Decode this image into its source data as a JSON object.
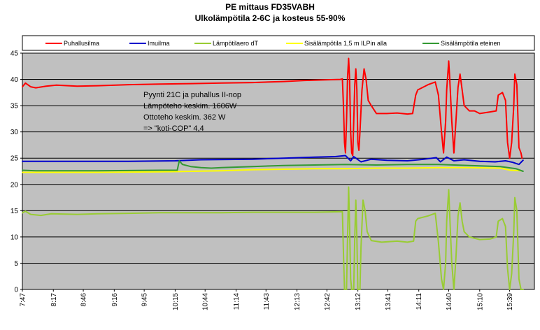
{
  "chart_data": {
    "type": "line",
    "title": "PE mittaus FD35VABH",
    "subtitle": "Ulkolämpötila 2-6C ja kosteus 55-90%",
    "xlabel": "",
    "ylabel": "",
    "ylim": [
      0,
      45
    ],
    "yticks": [
      0,
      5,
      10,
      15,
      20,
      25,
      30,
      35,
      40,
      45
    ],
    "x_range": [
      "7:47",
      "16:03"
    ],
    "x_tick_labels": [
      "7:47",
      "8:17",
      "8:46",
      "9:16",
      "9:45",
      "10:15",
      "10:44",
      "11:14",
      "11:43",
      "12:13",
      "12:42",
      "13:12",
      "13:41",
      "14:11",
      "14:40",
      "15:10",
      "15:39"
    ],
    "grid": "horizontal",
    "plot_background": "#c0c0c0",
    "legend_position": "top",
    "annotations": [
      "Pyynti 21C ja puhallus II-nop",
      "Lämpöteho keskim. 1606W",
      "Ottoteho keskim. 362 W",
      "=> \"koti-COP\" 4,4"
    ],
    "series": [
      {
        "name": "Puhallusilma",
        "color": "#ff0000",
        "points": [
          [
            "7:47",
            38.6
          ],
          [
            "7:50",
            39.3
          ],
          [
            "7:55",
            38.6
          ],
          [
            "8:00",
            38.4
          ],
          [
            "8:10",
            38.7
          ],
          [
            "8:20",
            38.9
          ],
          [
            "8:40",
            38.7
          ],
          [
            "9:00",
            38.8
          ],
          [
            "9:30",
            39.0
          ],
          [
            "10:00",
            39.1
          ],
          [
            "10:30",
            39.2
          ],
          [
            "11:00",
            39.3
          ],
          [
            "11:30",
            39.4
          ],
          [
            "12:00",
            39.6
          ],
          [
            "12:20",
            39.8
          ],
          [
            "12:40",
            39.9
          ],
          [
            "12:55",
            40.0
          ],
          [
            "12:57",
            40.1
          ],
          [
            "12:58",
            35.0
          ],
          [
            "12:59",
            28.0
          ],
          [
            "13:00",
            26.0
          ],
          [
            "13:01",
            32.0
          ],
          [
            "13:02",
            40.5
          ],
          [
            "13:03",
            44.0
          ],
          [
            "13:04",
            40.0
          ],
          [
            "13:05",
            30.0
          ],
          [
            "13:06",
            26.0
          ],
          [
            "13:07",
            25.5
          ],
          [
            "13:08",
            32.0
          ],
          [
            "13:09",
            39.0
          ],
          [
            "13:10",
            42.0
          ],
          [
            "13:11",
            38.0
          ],
          [
            "13:12",
            28.0
          ],
          [
            "13:13",
            26.5
          ],
          [
            "13:14",
            30.0
          ],
          [
            "13:16",
            38.0
          ],
          [
            "13:18",
            42.0
          ],
          [
            "13:20",
            40.0
          ],
          [
            "13:22",
            36.0
          ],
          [
            "13:25",
            35.0
          ],
          [
            "13:30",
            33.5
          ],
          [
            "13:40",
            33.5
          ],
          [
            "13:50",
            33.6
          ],
          [
            "14:00",
            33.4
          ],
          [
            "14:05",
            33.5
          ],
          [
            "14:08",
            37.0
          ],
          [
            "14:10",
            38.0
          ],
          [
            "14:20",
            39.0
          ],
          [
            "14:27",
            39.5
          ],
          [
            "14:30",
            37.0
          ],
          [
            "14:33",
            30.0
          ],
          [
            "14:35",
            26.0
          ],
          [
            "14:37",
            32.0
          ],
          [
            "14:38",
            38.0
          ],
          [
            "14:40",
            43.5
          ],
          [
            "14:41",
            40.0
          ],
          [
            "14:43",
            32.0
          ],
          [
            "14:45",
            26.0
          ],
          [
            "14:47",
            32.0
          ],
          [
            "14:49",
            38.5
          ],
          [
            "14:51",
            41.0
          ],
          [
            "14:53",
            38.0
          ],
          [
            "14:55",
            35.0
          ],
          [
            "15:00",
            34.0
          ],
          [
            "15:05",
            34.0
          ],
          [
            "15:10",
            33.5
          ],
          [
            "15:20",
            33.8
          ],
          [
            "15:26",
            34.0
          ],
          [
            "15:28",
            37.0
          ],
          [
            "15:32",
            37.5
          ],
          [
            "15:35",
            36.0
          ],
          [
            "15:37",
            28.0
          ],
          [
            "15:39",
            25.0
          ],
          [
            "15:41",
            28.0
          ],
          [
            "15:43",
            35.0
          ],
          [
            "15:44",
            41.0
          ],
          [
            "15:46",
            39.0
          ],
          [
            "15:48",
            27.0
          ],
          [
            "15:50",
            26.0
          ],
          [
            "15:51",
            25.0
          ]
        ]
      },
      {
        "name": "Imuilma",
        "color": "#0000cc",
        "points": [
          [
            "7:47",
            24.4
          ],
          [
            "8:30",
            24.4
          ],
          [
            "9:30",
            24.4
          ],
          [
            "10:15",
            24.5
          ],
          [
            "10:40",
            24.7
          ],
          [
            "11:30",
            24.8
          ],
          [
            "12:00",
            25.0
          ],
          [
            "12:30",
            25.2
          ],
          [
            "12:50",
            25.3
          ],
          [
            "13:00",
            25.5
          ],
          [
            "13:05",
            24.5
          ],
          [
            "13:08",
            25.3
          ],
          [
            "13:15",
            24.3
          ],
          [
            "13:25",
            24.8
          ],
          [
            "13:40",
            24.6
          ],
          [
            "14:00",
            24.5
          ],
          [
            "14:11",
            24.7
          ],
          [
            "14:20",
            24.9
          ],
          [
            "14:28",
            25.1
          ],
          [
            "14:32",
            24.3
          ],
          [
            "14:38",
            25.2
          ],
          [
            "14:45",
            24.5
          ],
          [
            "14:55",
            24.7
          ],
          [
            "15:10",
            24.4
          ],
          [
            "15:25",
            24.3
          ],
          [
            "15:35",
            24.5
          ],
          [
            "15:42",
            24.2
          ],
          [
            "15:48",
            23.8
          ],
          [
            "15:52",
            24.6
          ]
        ]
      },
      {
        "name": "Lämpötilaero dT",
        "color": "#99cc33",
        "points": [
          [
            "7:47",
            14.6
          ],
          [
            "7:50",
            14.9
          ],
          [
            "7:55",
            14.3
          ],
          [
            "8:05",
            14.1
          ],
          [
            "8:15",
            14.4
          ],
          [
            "8:40",
            14.3
          ],
          [
            "9:00",
            14.4
          ],
          [
            "9:30",
            14.5
          ],
          [
            "10:00",
            14.6
          ],
          [
            "10:30",
            14.6
          ],
          [
            "11:00",
            14.6
          ],
          [
            "11:30",
            14.7
          ],
          [
            "12:00",
            14.7
          ],
          [
            "12:30",
            14.7
          ],
          [
            "12:57",
            14.8
          ],
          [
            "12:58",
            7.0
          ],
          [
            "12:59",
            0.0
          ],
          [
            "13:01",
            0.0
          ],
          [
            "13:02",
            10.0
          ],
          [
            "13:03",
            19.5
          ],
          [
            "13:04",
            12.0
          ],
          [
            "13:05",
            2.0
          ],
          [
            "13:06",
            0.0
          ],
          [
            "13:08",
            0.0
          ],
          [
            "13:09",
            10.0
          ],
          [
            "13:10",
            17.0
          ],
          [
            "13:11",
            10.0
          ],
          [
            "13:12",
            0.0
          ],
          [
            "13:14",
            0.0
          ],
          [
            "13:15",
            8.0
          ],
          [
            "13:17",
            17.0
          ],
          [
            "13:19",
            15.0
          ],
          [
            "13:21",
            11.0
          ],
          [
            "13:25",
            9.3
          ],
          [
            "13:35",
            9.0
          ],
          [
            "13:50",
            9.2
          ],
          [
            "14:00",
            9.0
          ],
          [
            "14:06",
            9.2
          ],
          [
            "14:08",
            13.0
          ],
          [
            "14:10",
            13.5
          ],
          [
            "14:20",
            14.0
          ],
          [
            "14:27",
            14.5
          ],
          [
            "14:30",
            9.0
          ],
          [
            "14:33",
            2.0
          ],
          [
            "14:35",
            0.0
          ],
          [
            "14:37",
            5.0
          ],
          [
            "14:38",
            13.0
          ],
          [
            "14:40",
            19.0
          ],
          [
            "14:41",
            14.0
          ],
          [
            "14:43",
            5.0
          ],
          [
            "14:45",
            0.0
          ],
          [
            "14:47",
            6.0
          ],
          [
            "14:49",
            14.0
          ],
          [
            "14:51",
            16.5
          ],
          [
            "14:53",
            13.0
          ],
          [
            "14:55",
            11.0
          ],
          [
            "15:00",
            10.0
          ],
          [
            "15:10",
            9.5
          ],
          [
            "15:20",
            9.6
          ],
          [
            "15:26",
            10.0
          ],
          [
            "15:28",
            13.0
          ],
          [
            "15:32",
            13.5
          ],
          [
            "15:35",
            12.0
          ],
          [
            "15:37",
            4.0
          ],
          [
            "15:39",
            0.0
          ],
          [
            "15:41",
            3.0
          ],
          [
            "15:43",
            11.0
          ],
          [
            "15:44",
            17.5
          ],
          [
            "15:46",
            15.0
          ],
          [
            "15:48",
            2.0
          ],
          [
            "15:50",
            0.0
          ],
          [
            "15:52",
            0.0
          ]
        ]
      },
      {
        "name": "Sisälämpötila 1,5 m ILPin  alla",
        "color": "#ffff00",
        "points": [
          [
            "7:47",
            22.3
          ],
          [
            "9:00",
            22.3
          ],
          [
            "10:00",
            22.4
          ],
          [
            "10:30",
            22.5
          ],
          [
            "11:00",
            22.6
          ],
          [
            "11:30",
            22.8
          ],
          [
            "12:00",
            22.9
          ],
          [
            "12:30",
            23.0
          ],
          [
            "13:00",
            23.0
          ],
          [
            "13:30",
            23.1
          ],
          [
            "14:00",
            23.1
          ],
          [
            "14:30",
            23.2
          ],
          [
            "15:00",
            23.2
          ],
          [
            "15:30",
            23.1
          ],
          [
            "15:40",
            22.7
          ],
          [
            "15:50",
            22.6
          ]
        ]
      },
      {
        "name": "Sisälämpötila eteinen",
        "color": "#339933",
        "points": [
          [
            "7:47",
            22.7
          ],
          [
            "8:00",
            22.6
          ],
          [
            "9:00",
            22.6
          ],
          [
            "10:00",
            22.7
          ],
          [
            "10:17",
            22.7
          ],
          [
            "10:19",
            24.5
          ],
          [
            "10:22",
            23.8
          ],
          [
            "10:30",
            23.4
          ],
          [
            "10:40",
            23.2
          ],
          [
            "10:50",
            23.1
          ],
          [
            "11:00",
            23.2
          ],
          [
            "11:30",
            23.4
          ],
          [
            "12:00",
            23.6
          ],
          [
            "12:30",
            23.7
          ],
          [
            "13:00",
            23.8
          ],
          [
            "13:30",
            23.7
          ],
          [
            "14:00",
            23.8
          ],
          [
            "14:30",
            23.8
          ],
          [
            "15:00",
            23.6
          ],
          [
            "15:30",
            23.4
          ],
          [
            "15:45",
            23.0
          ],
          [
            "15:52",
            22.5
          ]
        ]
      }
    ]
  }
}
